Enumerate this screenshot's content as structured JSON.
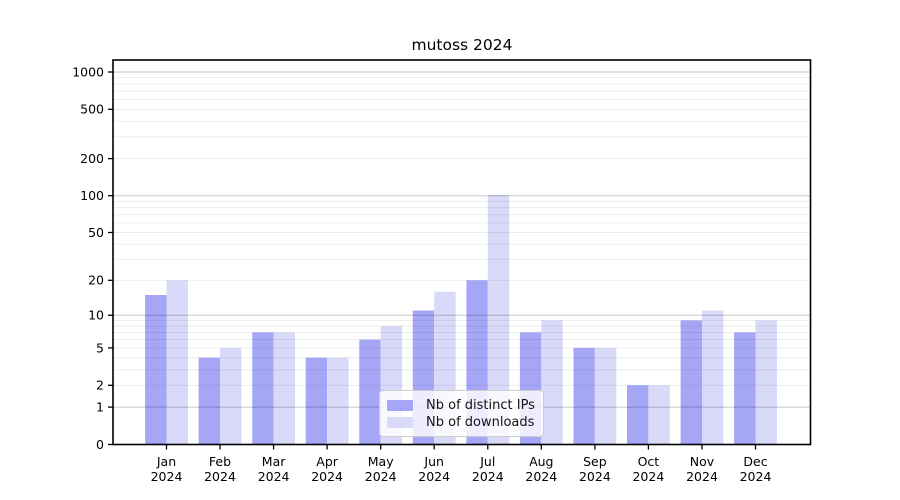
{
  "title": "mutoss 2024",
  "chart_data": {
    "type": "bar",
    "title": "mutoss 2024",
    "xlabel": "",
    "ylabel": "",
    "scale": "log1p",
    "categories": [
      "Jan",
      "Feb",
      "Mar",
      "Apr",
      "May",
      "Jun",
      "Jul",
      "Aug",
      "Sep",
      "Oct",
      "Nov",
      "Dec"
    ],
    "year_label": "2024",
    "series": [
      {
        "name": "Nb of distinct IPs",
        "color": "#a6a6f7",
        "values": [
          15,
          4,
          7,
          4,
          6,
          11,
          20,
          7,
          5,
          2,
          9,
          7
        ]
      },
      {
        "name": "Nb of downloads",
        "color": "#d9d9f9",
        "values": [
          20,
          5,
          7,
          4,
          8,
          16,
          101,
          9,
          5,
          2,
          11,
          9
        ]
      }
    ],
    "yticks": [
      0,
      1,
      2,
      5,
      10,
      20,
      50,
      100,
      200,
      500,
      1000
    ],
    "ylim": [
      0,
      1100
    ],
    "grid": {
      "major_lines": [
        1,
        10,
        100,
        1000
      ],
      "minor_lines_per_decade": true,
      "grid_on_top_of_bars": true
    },
    "legend_position": "lower center"
  },
  "colors": {
    "background": "#ffffff",
    "spine": "#000000",
    "tick_label": "#000000",
    "major_grid": "rgba(0,0,0,0.22)",
    "minor_grid": "rgba(0,0,0,0.08)",
    "legend_border": "#cccccc",
    "legend_background": "rgba(255,255,255,0.8)"
  }
}
